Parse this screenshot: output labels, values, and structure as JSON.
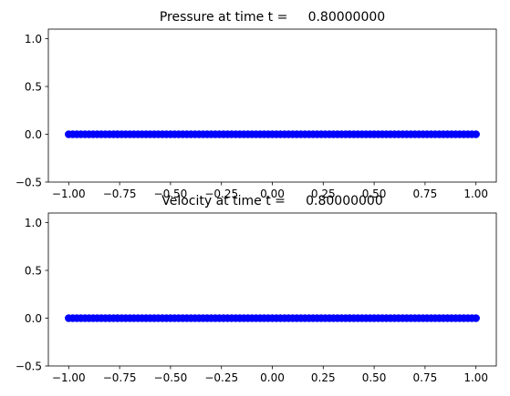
{
  "chart_data": [
    {
      "type": "scatter",
      "title": "Pressure at time t =     0.80000000",
      "xlim": [
        -1.1,
        1.1
      ],
      "ylim": [
        -0.5,
        1.1
      ],
      "xticks": [
        -1.0,
        -0.75,
        -0.5,
        -0.25,
        0.0,
        0.25,
        0.5,
        0.75,
        1.0
      ],
      "xtick_labels": [
        "−1.00",
        "−0.75",
        "−0.50",
        "−0.25",
        "0.00",
        "0.25",
        "0.50",
        "0.75",
        "1.00"
      ],
      "yticks": [
        -0.5,
        0.0,
        0.5,
        1.0
      ],
      "ytick_labels": [
        "−0.5",
        "0.0",
        "0.5",
        "1.0"
      ],
      "grid": false,
      "color": "#0000ff",
      "series": [
        {
          "x_range": [
            -1.0,
            1.0
          ],
          "n_points": 101,
          "y": 0.0
        }
      ]
    },
    {
      "type": "scatter",
      "title": "Velocity at time t =     0.80000000",
      "xlim": [
        -1.1,
        1.1
      ],
      "ylim": [
        -0.5,
        1.1
      ],
      "xticks": [
        -1.0,
        -0.75,
        -0.5,
        -0.25,
        0.0,
        0.25,
        0.5,
        0.75,
        1.0
      ],
      "xtick_labels": [
        "−1.00",
        "−0.75",
        "−0.50",
        "−0.25",
        "0.00",
        "0.25",
        "0.50",
        "0.75",
        "1.00"
      ],
      "yticks": [
        -0.5,
        0.0,
        0.5,
        1.0
      ],
      "ytick_labels": [
        "−0.5",
        "0.0",
        "0.5",
        "1.0"
      ],
      "grid": false,
      "color": "#0000ff",
      "series": [
        {
          "x_range": [
            -1.0,
            1.0
          ],
          "n_points": 101,
          "y": 0.0
        }
      ]
    }
  ]
}
